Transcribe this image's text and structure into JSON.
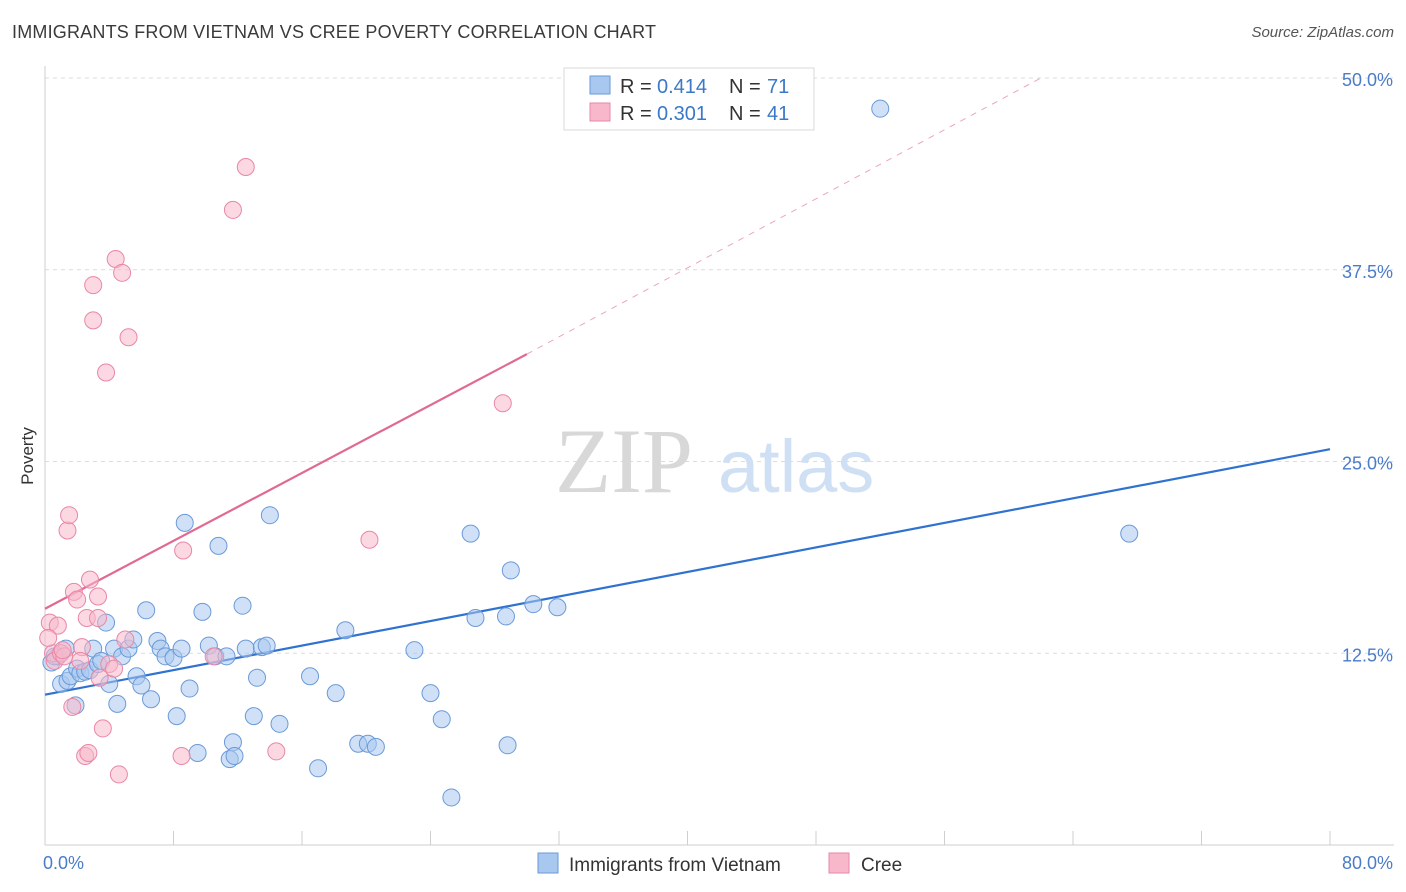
{
  "header": {
    "title": "IMMIGRANTS FROM VIETNAM VS CREE POVERTY CORRELATION CHART",
    "source": "Source: ZipAtlas.com"
  },
  "watermark": {
    "zip": "ZIP",
    "atlas": "atlas"
  },
  "legend_box": {
    "rows": [
      {
        "r_label": "R =",
        "r_value": "0.414",
        "n_label": "N =",
        "n_value": "71",
        "color": "#a9c8f0"
      },
      {
        "r_label": "R =",
        "r_value": "0.301",
        "n_label": "N =",
        "n_value": "41",
        "color": "#f7b8cb"
      }
    ]
  },
  "chart_data": {
    "type": "scatter",
    "title": "IMMIGRANTS FROM VIETNAM VS CREE POVERTY CORRELATION CHART",
    "xlabel": "",
    "ylabel": "Poverty",
    "xlim": [
      0,
      80
    ],
    "ylim": [
      0,
      50
    ],
    "x_tick_labels": [
      "0.0%",
      "80.0%"
    ],
    "y_tick_labels": [
      "12.5%",
      "25.0%",
      "37.5%",
      "50.0%"
    ],
    "y_ticks": [
      12.5,
      25,
      37.5,
      50
    ],
    "grid": true,
    "legend_position": "top-center",
    "series": [
      {
        "name": "Immigrants from Vietnam",
        "color": "#a9c8f0",
        "stroke": "#6a9ad8",
        "line_color": "#2f72d0",
        "trend": {
          "x": [
            0,
            80
          ],
          "y": [
            9.8,
            25.8
          ]
        },
        "points": [
          [
            0.4,
            11.9
          ],
          [
            0.8,
            12.3
          ],
          [
            1.0,
            10.5
          ],
          [
            1.3,
            12.8
          ],
          [
            1.4,
            10.7
          ],
          [
            1.6,
            11.0
          ],
          [
            1.9,
            9.1
          ],
          [
            2.0,
            11.5
          ],
          [
            2.2,
            11.2
          ],
          [
            2.5,
            11.3
          ],
          [
            2.8,
            11.4
          ],
          [
            3.0,
            12.8
          ],
          [
            3.3,
            11.8
          ],
          [
            3.5,
            12.0
          ],
          [
            3.8,
            14.5
          ],
          [
            4.0,
            10.5
          ],
          [
            4.3,
            12.8
          ],
          [
            4.5,
            9.2
          ],
          [
            4.8,
            12.3
          ],
          [
            5.2,
            12.8
          ],
          [
            5.5,
            13.4
          ],
          [
            5.7,
            11.0
          ],
          [
            6.0,
            10.4
          ],
          [
            6.3,
            15.3
          ],
          [
            6.6,
            9.5
          ],
          [
            7.0,
            13.3
          ],
          [
            7.2,
            12.8
          ],
          [
            7.5,
            12.3
          ],
          [
            8.0,
            12.2
          ],
          [
            8.2,
            8.4
          ],
          [
            8.5,
            12.8
          ],
          [
            8.7,
            21.0
          ],
          [
            9.0,
            10.2
          ],
          [
            9.5,
            6.0
          ],
          [
            9.8,
            15.2
          ],
          [
            10.2,
            13.0
          ],
          [
            10.6,
            12.3
          ],
          [
            10.8,
            19.5
          ],
          [
            11.3,
            12.3
          ],
          [
            11.5,
            5.6
          ],
          [
            11.7,
            6.7
          ],
          [
            11.8,
            5.8
          ],
          [
            12.3,
            15.6
          ],
          [
            12.5,
            12.8
          ],
          [
            13.0,
            8.4
          ],
          [
            13.2,
            10.9
          ],
          [
            13.5,
            12.9
          ],
          [
            13.8,
            13.0
          ],
          [
            14.0,
            21.5
          ],
          [
            14.6,
            7.9
          ],
          [
            16.5,
            11.0
          ],
          [
            17.0,
            5.0
          ],
          [
            18.1,
            9.9
          ],
          [
            18.7,
            14.0
          ],
          [
            19.5,
            6.6
          ],
          [
            20.1,
            6.6
          ],
          [
            20.6,
            6.4
          ],
          [
            23.0,
            12.7
          ],
          [
            24.0,
            9.9
          ],
          [
            24.7,
            8.2
          ],
          [
            25.3,
            3.1
          ],
          [
            26.5,
            20.3
          ],
          [
            26.8,
            14.8
          ],
          [
            28.7,
            14.9
          ],
          [
            28.8,
            6.5
          ],
          [
            29.0,
            17.9
          ],
          [
            30.4,
            15.7
          ],
          [
            31.9,
            15.5
          ],
          [
            52.0,
            48.0
          ],
          [
            67.5,
            20.3
          ],
          [
            0.6,
            12.3
          ]
        ]
      },
      {
        "name": "Cree",
        "color": "#f7b8cb",
        "stroke": "#e987a6",
        "line_color": "#e06a93",
        "trend": {
          "x": [
            0,
            30
          ],
          "y": [
            15.4,
            32.0
          ]
        },
        "trend_dashed_to": {
          "x": 62,
          "y": 50
        },
        "points": [
          [
            0.3,
            14.5
          ],
          [
            0.5,
            12.5
          ],
          [
            0.6,
            12.0
          ],
          [
            0.8,
            14.3
          ],
          [
            1.0,
            12.5
          ],
          [
            1.2,
            12.3
          ],
          [
            1.4,
            20.5
          ],
          [
            1.5,
            21.5
          ],
          [
            1.7,
            9.0
          ],
          [
            1.8,
            16.5
          ],
          [
            2.0,
            16.0
          ],
          [
            2.3,
            12.9
          ],
          [
            2.5,
            5.8
          ],
          [
            2.6,
            14.8
          ],
          [
            2.7,
            6.0
          ],
          [
            2.8,
            17.3
          ],
          [
            3.0,
            36.5
          ],
          [
            3.0,
            34.2
          ],
          [
            3.3,
            14.8
          ],
          [
            3.3,
            16.2
          ],
          [
            3.4,
            10.9
          ],
          [
            3.6,
            7.6
          ],
          [
            3.8,
            30.8
          ],
          [
            4.0,
            11.8
          ],
          [
            4.4,
            38.2
          ],
          [
            4.6,
            4.6
          ],
          [
            4.8,
            37.3
          ],
          [
            5.0,
            13.4
          ],
          [
            5.2,
            33.1
          ],
          [
            8.5,
            5.8
          ],
          [
            8.6,
            19.2
          ],
          [
            10.5,
            12.3
          ],
          [
            11.7,
            41.4
          ],
          [
            12.5,
            44.2
          ],
          [
            14.4,
            6.1
          ],
          [
            20.2,
            19.9
          ],
          [
            28.5,
            28.8
          ],
          [
            0.2,
            13.5
          ],
          [
            2.2,
            12.0
          ],
          [
            1.1,
            12.7
          ],
          [
            4.3,
            11.5
          ]
        ]
      }
    ]
  },
  "bottom_legend": [
    {
      "label": "Immigrants from Vietnam",
      "color": "#a9c8f0"
    },
    {
      "label": "Cree",
      "color": "#f7b8cb"
    }
  ]
}
